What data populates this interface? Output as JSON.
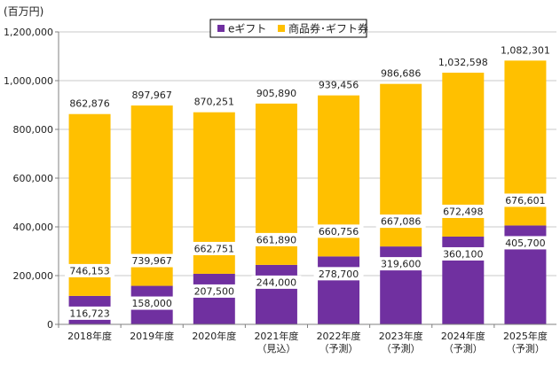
{
  "chart_data": {
    "type": "bar",
    "stacked": true,
    "unit_label": "(百万円)",
    "categories": [
      [
        "2018年度"
      ],
      [
        "2019年度"
      ],
      [
        "2020年度"
      ],
      [
        "2021年度",
        "（見込）"
      ],
      [
        "2022年度",
        "（予測）"
      ],
      [
        "2023年度",
        "（予測）"
      ],
      [
        "2024年度",
        "（予測）"
      ],
      [
        "2025年度",
        "（予測）"
      ]
    ],
    "series": [
      {
        "name": "eギフト",
        "color": "#7030a0",
        "values": [
          116723,
          158000,
          207500,
          244000,
          278700,
          319600,
          360100,
          405700
        ],
        "labels": [
          "116,723",
          "158,000",
          "207,500",
          "244,000",
          "278,700",
          "319,600",
          "360,100",
          "405,700"
        ]
      },
      {
        "name": "商品券･ギフト券",
        "color": "#ffc000",
        "values": [
          746153,
          739967,
          662751,
          661890,
          660756,
          667086,
          672498,
          676601
        ],
        "labels": [
          "746,153",
          "739,967",
          "662,751",
          "661,890",
          "660,756",
          "667,086",
          "672,498",
          "676,601"
        ]
      }
    ],
    "totals": [
      862876,
      897967,
      870251,
      905890,
      939456,
      986686,
      1032598,
      1082301
    ],
    "total_labels": [
      "862,876",
      "897,967",
      "870,251",
      "905,890",
      "939,456",
      "986,686",
      "1,032,598",
      "1,082,301"
    ],
    "ylim": [
      0,
      1200000
    ],
    "yticks": [
      0,
      200000,
      400000,
      600000,
      800000,
      1000000,
      1200000
    ],
    "ytick_labels": [
      "0",
      "200,000",
      "400,000",
      "600,000",
      "800,000",
      "1,000,000",
      "1,200,000"
    ],
    "legend_position": "top-center",
    "grid": true
  }
}
